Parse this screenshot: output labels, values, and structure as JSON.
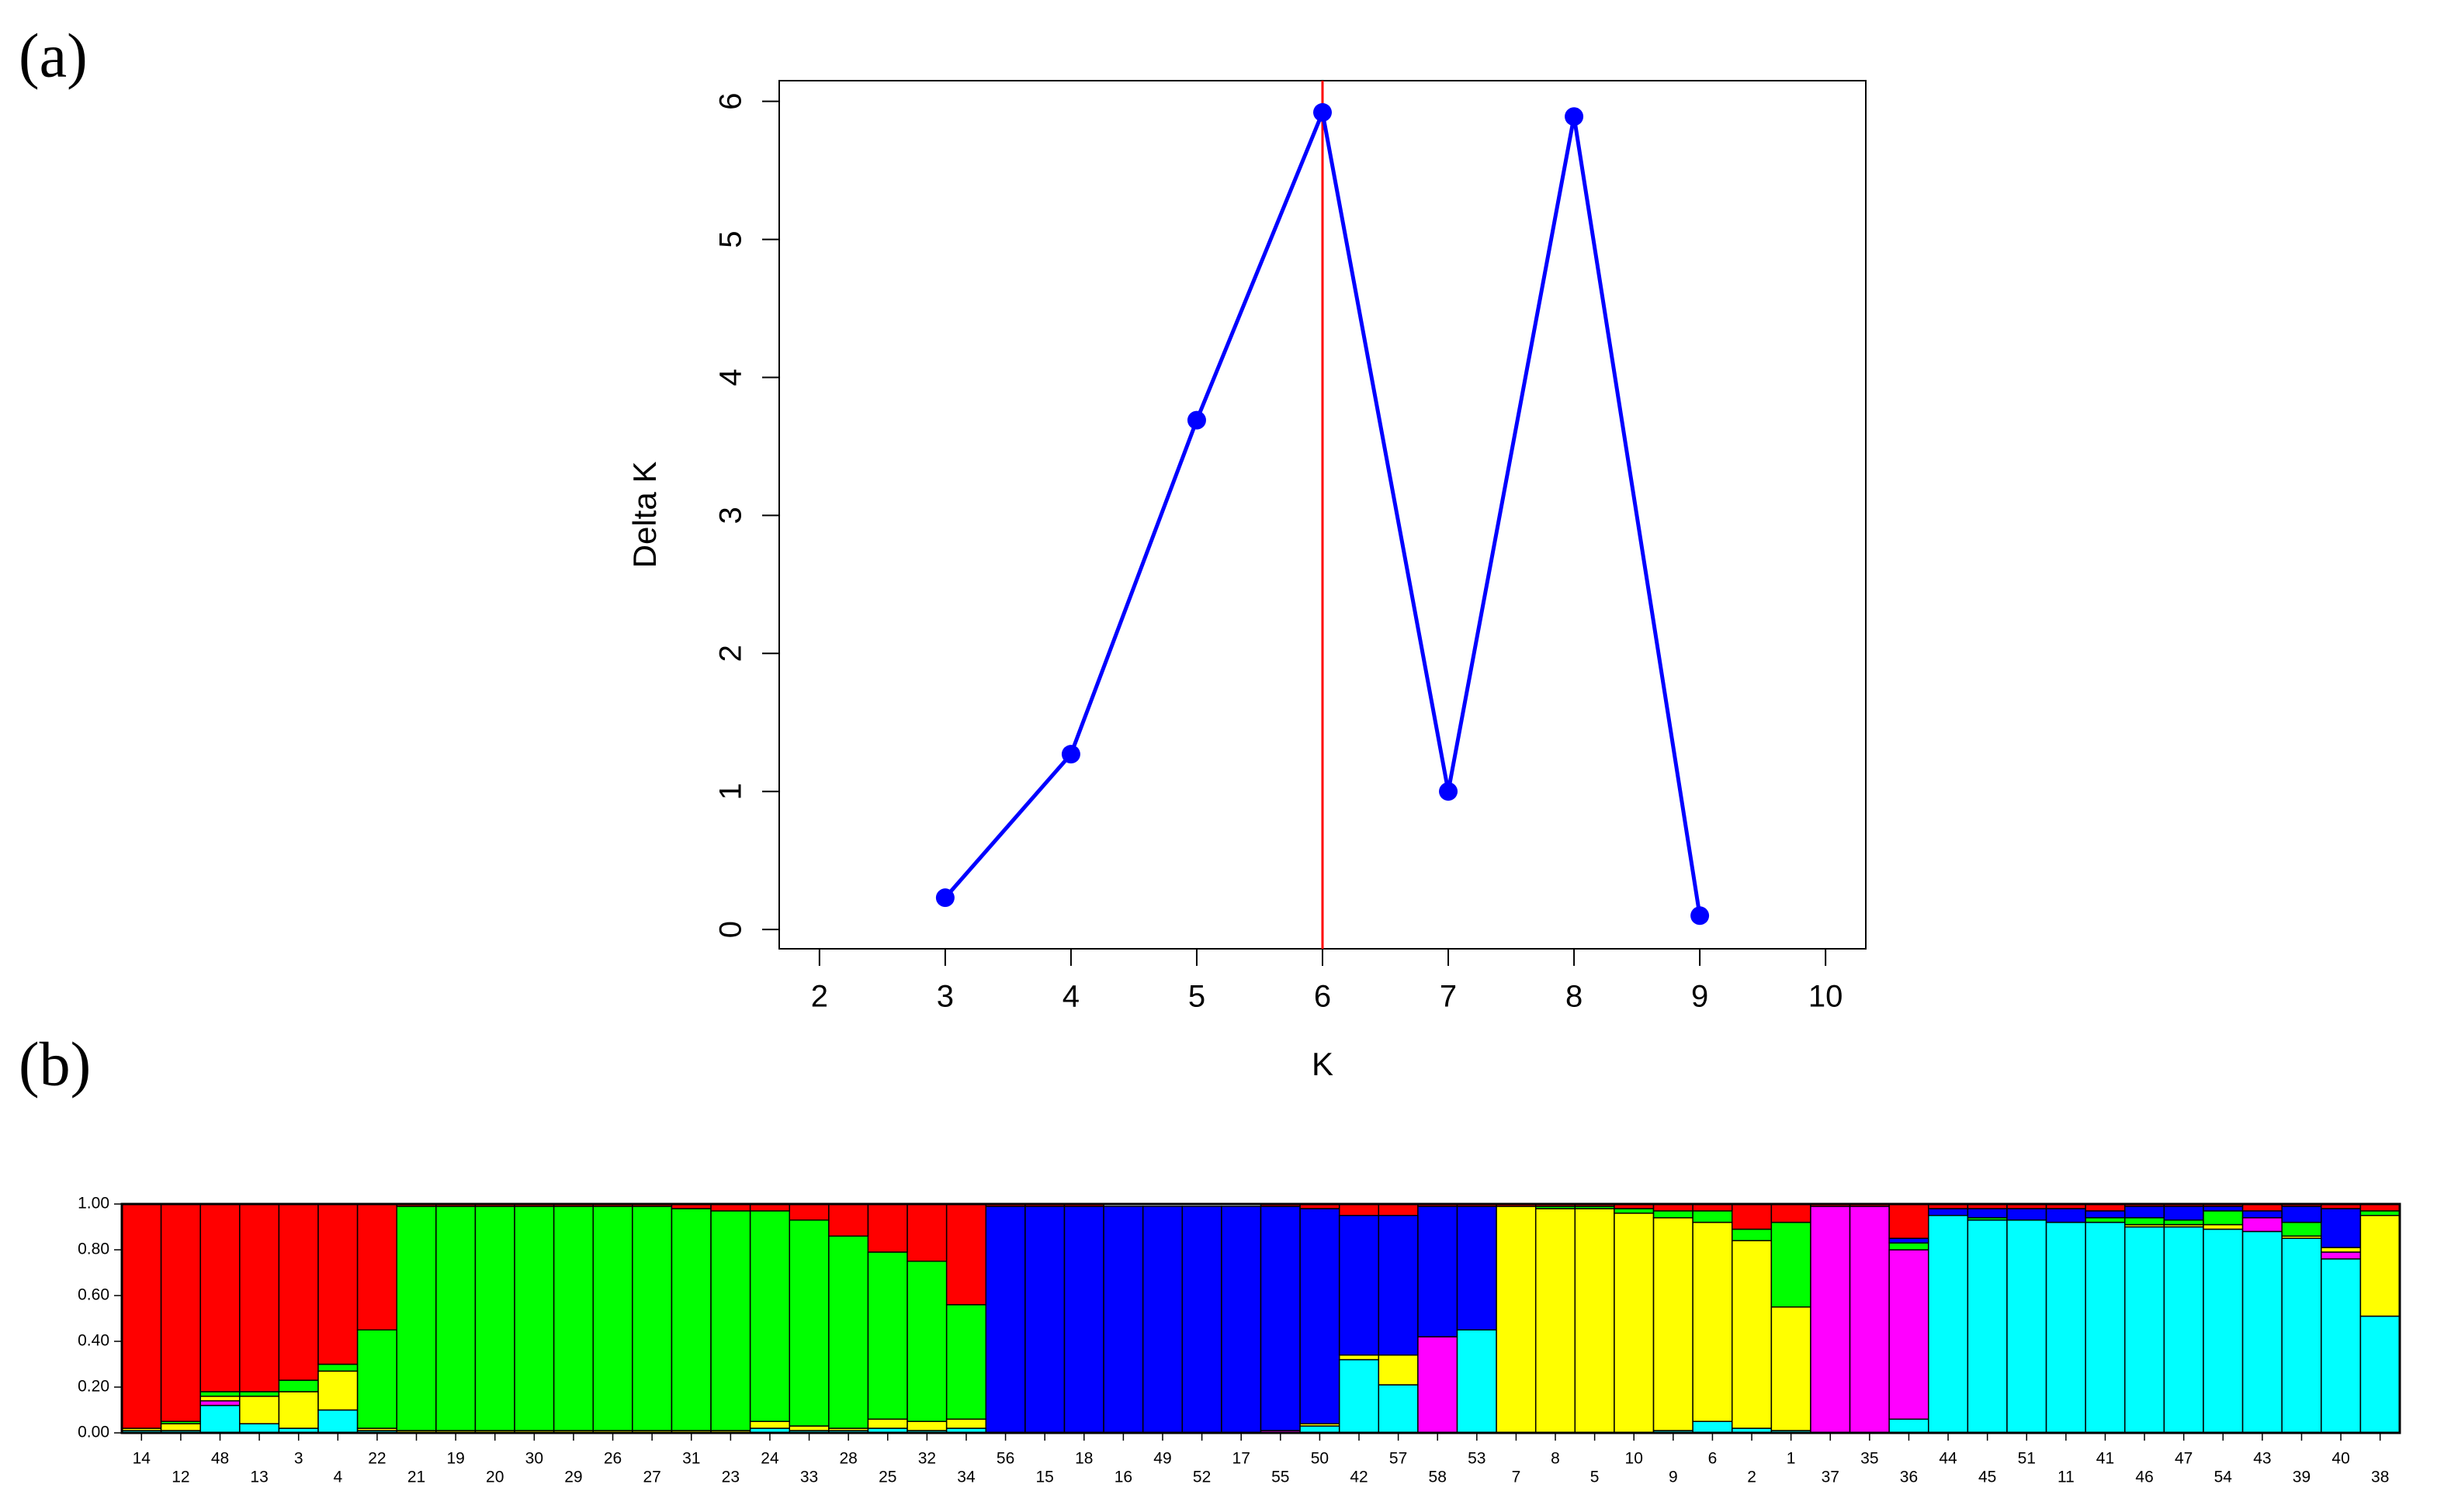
{
  "chart_data": [
    {
      "type": "line",
      "panel_label": "(a)",
      "x_label": "K",
      "y_label": "Delta K",
      "x": [
        3,
        4,
        5,
        6,
        7,
        8,
        9
      ],
      "values": [
        0.23,
        1.27,
        3.69,
        5.92,
        1.0,
        5.89,
        0.1
      ],
      "color": "#0000ff",
      "vline": {
        "value": 6,
        "color": "#ff0000"
      },
      "xlim": [
        1.68,
        10.32
      ],
      "xticks": [
        2,
        3,
        4,
        5,
        6,
        7,
        8,
        9,
        10
      ],
      "ylim": [
        -0.14,
        6.15
      ],
      "yticks": [
        0,
        1,
        2,
        3,
        4,
        5,
        6
      ]
    },
    {
      "type": "stacked_bar",
      "panel_label": "(b)",
      "categories": [
        "14",
        "12",
        "48",
        "13",
        "3",
        "4",
        "22",
        "21",
        "19",
        "20",
        "30",
        "29",
        "26",
        "27",
        "31",
        "23",
        "24",
        "33",
        "28",
        "25",
        "32",
        "34",
        "56",
        "15",
        "18",
        "16",
        "49",
        "52",
        "17",
        "55",
        "50",
        "42",
        "57",
        "58",
        "53",
        "7",
        "8",
        "5",
        "10",
        "9",
        "6",
        "2",
        "1",
        "37",
        "35",
        "36",
        "44",
        "45",
        "51",
        "11",
        "41",
        "46",
        "47",
        "54",
        "43",
        "39",
        "40",
        "38"
      ],
      "series": [
        {
          "color": "#00ffff",
          "values": [
            0.01,
            0.01,
            0.12,
            0.04,
            0.02,
            0.1,
            0.01,
            0,
            0,
            0,
            0,
            0,
            0,
            0,
            0,
            0,
            0.02,
            0.01,
            0.01,
            0.02,
            0.01,
            0.02,
            0,
            0,
            0,
            0,
            0,
            0,
            0,
            0,
            0.03,
            0.32,
            0.21,
            0,
            0.45,
            0,
            0,
            0,
            0,
            0.01,
            0.05,
            0.02,
            0.01,
            0,
            0,
            0.06,
            0.95,
            0.93,
            0.93,
            0.92,
            0.92,
            0.9,
            0.9,
            0.89,
            0.88,
            0.85,
            0.76,
            0.51
          ]
        },
        {
          "color": "#ff00ff",
          "values": [
            0,
            0,
            0.02,
            0,
            0,
            0,
            0,
            0,
            0,
            0,
            0,
            0,
            0,
            0,
            0,
            0,
            0,
            0,
            0,
            0,
            0,
            0,
            0,
            0,
            0,
            0,
            0,
            0,
            0,
            0.01,
            0,
            0,
            0,
            0.42,
            0,
            0,
            0,
            0,
            0,
            0,
            0,
            0,
            0,
            0.99,
            0.99,
            0.74,
            0,
            0,
            0,
            0,
            0,
            0,
            0,
            0,
            0.06,
            0,
            0.03,
            0
          ]
        },
        {
          "color": "#ffff00",
          "values": [
            0.01,
            0.03,
            0.02,
            0.12,
            0.16,
            0.17,
            0.01,
            0.01,
            0.01,
            0.01,
            0.01,
            0.01,
            0.01,
            0.01,
            0.01,
            0.01,
            0.03,
            0.02,
            0.01,
            0.04,
            0.04,
            0.04,
            0,
            0,
            0,
            0,
            0,
            0,
            0,
            0,
            0.01,
            0.02,
            0.13,
            0,
            0,
            0.99,
            0.98,
            0.98,
            0.96,
            0.93,
            0.87,
            0.82,
            0.54,
            0,
            0,
            0,
            0,
            0,
            0,
            0,
            0,
            0.01,
            0.01,
            0.02,
            0,
            0.01,
            0.02,
            0.44
          ]
        },
        {
          "color": "#00ff00",
          "values": [
            0,
            0.01,
            0.02,
            0.02,
            0.05,
            0.03,
            0.43,
            0.98,
            0.98,
            0.98,
            0.98,
            0.98,
            0.98,
            0.98,
            0.97,
            0.96,
            0.92,
            0.9,
            0.84,
            0.73,
            0.7,
            0.5,
            0,
            0,
            0,
            0,
            0,
            0,
            0,
            0,
            0,
            0,
            0,
            0,
            0,
            0,
            0.01,
            0.01,
            0.02,
            0.03,
            0.05,
            0.05,
            0.37,
            0,
            0,
            0.03,
            0,
            0.01,
            0,
            0,
            0.02,
            0.03,
            0.02,
            0.06,
            0,
            0.06,
            0,
            0.02
          ]
        },
        {
          "color": "#0000ff",
          "values": [
            0,
            0,
            0,
            0,
            0,
            0,
            0,
            0,
            0,
            0,
            0,
            0,
            0,
            0,
            0,
            0,
            0,
            0,
            0,
            0,
            0,
            0,
            0.99,
            0.99,
            0.99,
            0.99,
            0.99,
            0.99,
            0.99,
            0.98,
            0.94,
            0.61,
            0.61,
            0.57,
            0.54,
            0,
            0,
            0,
            0,
            0,
            0,
            0,
            0,
            0,
            0,
            0.02,
            0.03,
            0.04,
            0.05,
            0.06,
            0.03,
            0.05,
            0.06,
            0.02,
            0.03,
            0.07,
            0.17,
            0
          ]
        },
        {
          "color": "#ff0000",
          "values": [
            0.98,
            0.95,
            0.82,
            0.82,
            0.77,
            0.7,
            0.55,
            0.01,
            0.01,
            0.01,
            0.01,
            0.01,
            0.01,
            0.01,
            0.02,
            0.03,
            0.03,
            0.07,
            0.14,
            0.21,
            0.25,
            0.44,
            0.01,
            0.01,
            0.01,
            0,
            0,
            0,
            0,
            0.01,
            0.02,
            0.05,
            0.05,
            0.01,
            0.01,
            0.01,
            0.01,
            0.01,
            0.02,
            0.03,
            0.03,
            0.11,
            0.08,
            0.01,
            0.01,
            0.15,
            0.02,
            0.02,
            0.02,
            0.02,
            0.03,
            0.01,
            0.01,
            0.01,
            0.03,
            0.01,
            0.02,
            0.03
          ]
        }
      ],
      "ylim": [
        0,
        1
      ],
      "yticks": [
        {
          "value": 0,
          "label": "0.00"
        },
        {
          "value": 0.2,
          "label": "0.20"
        },
        {
          "value": 0.4,
          "label": "0.40"
        },
        {
          "value": 0.6,
          "label": "0.60"
        },
        {
          "value": 0.8,
          "label": "0.80"
        },
        {
          "value": 1,
          "label": "1.00"
        }
      ]
    }
  ]
}
